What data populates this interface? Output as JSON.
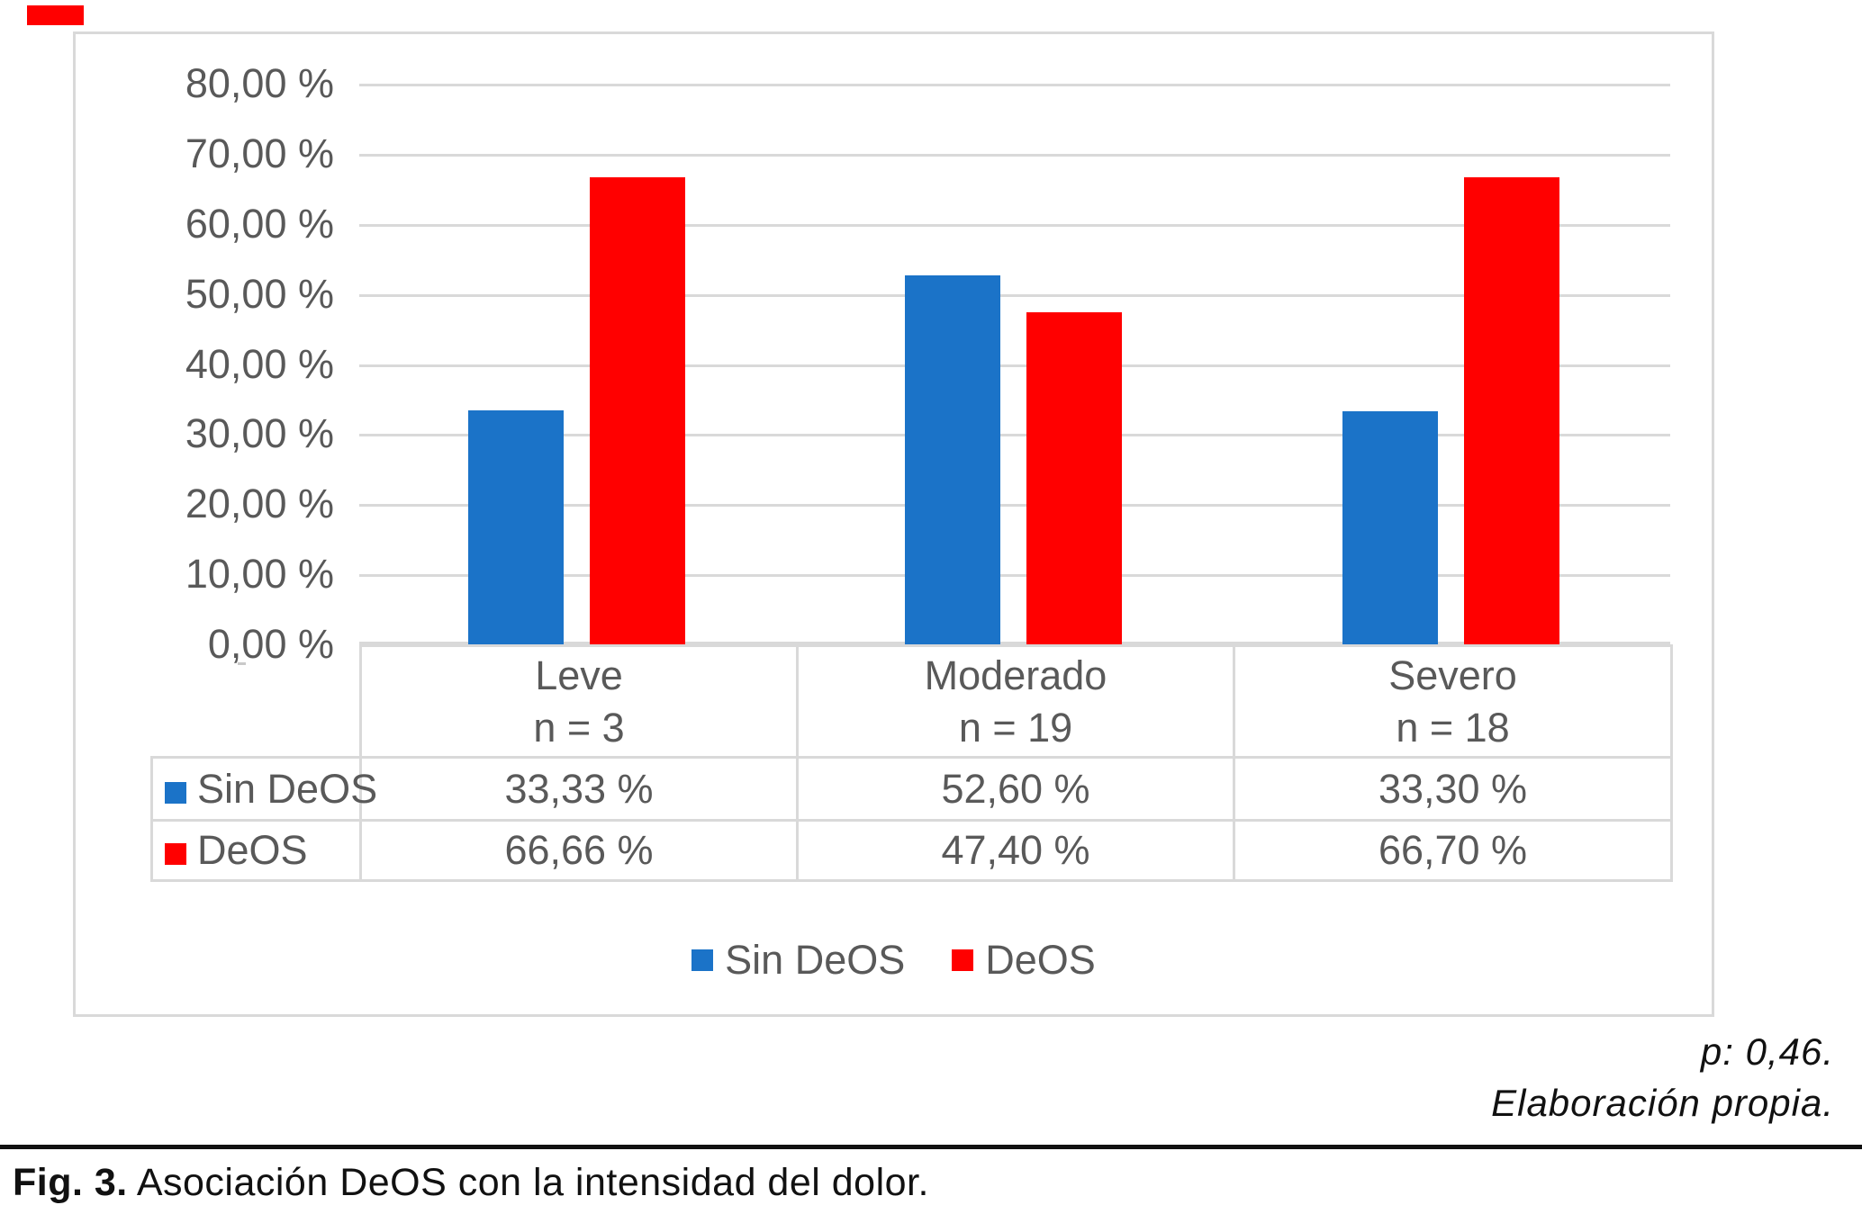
{
  "chart_data": {
    "type": "bar",
    "title": "",
    "categories": [
      "Leve",
      "Moderado",
      "Severo"
    ],
    "category_counts": [
      "n = 3",
      "n = 19",
      "n = 18"
    ],
    "series": [
      {
        "name": "Sin DeOS",
        "color": "#1B73C8",
        "values": [
          33.33,
          52.6,
          33.3
        ],
        "value_labels": [
          "33,33 %",
          "52,60 %",
          "33,30 %"
        ]
      },
      {
        "name": "DeOS",
        "color": "#FF0000",
        "values": [
          66.66,
          47.4,
          66.7
        ],
        "value_labels": [
          "66,66 %",
          "47,40 %",
          "66,70 %"
        ]
      }
    ],
    "ylim": [
      0,
      80
    ],
    "y_tick_labels": [
      "80,00 %",
      "70,00 %",
      "60,00 %",
      "50,00 %",
      "40,00 %",
      "30,00 %",
      "20,00 %",
      "10,00 %",
      "0,00 %"
    ],
    "grid": true,
    "legend_position": "bottom",
    "has_data_table": true
  },
  "notes": {
    "p_value": "p: 0,46.",
    "source": "Elaboración propia."
  },
  "caption": {
    "label": "Fig. 3.",
    "text": "Asociación DeOS con la intensidad del dolor."
  },
  "colors": {
    "sin_deos_blue": "#1B73C8",
    "deos_red": "#FF0000",
    "chart_text_gray": "#595959",
    "grid_border_gray": "#D9D9D9"
  }
}
